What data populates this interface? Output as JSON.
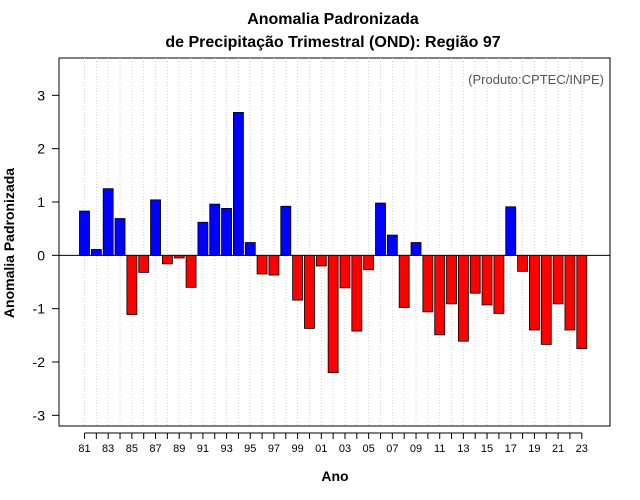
{
  "chart_data": {
    "type": "bar",
    "title_line1": "Anomalia Padronizada",
    "title_line2": "de Precipitação Trimestral (OND): Região 97",
    "xlabel": "Ano",
    "ylabel": "Anomalia Padronizada",
    "credit": "(Produto:CPTEC/INPE)",
    "ylim": [
      -3.2,
      3.7
    ],
    "yticks": [
      -3,
      -2,
      -1,
      0,
      1,
      2,
      3
    ],
    "ytick_labels": [
      "-3",
      "-2",
      "-1",
      "0",
      "1",
      "2",
      "3"
    ],
    "xtick_labels": [
      "81",
      "83",
      "85",
      "87",
      "89",
      "91",
      "93",
      "95",
      "97",
      "99",
      "01",
      "03",
      "05",
      "07",
      "09",
      "11",
      "13",
      "15",
      "17",
      "19",
      "21",
      "23"
    ],
    "categories": [
      "1981",
      "1982",
      "1983",
      "1984",
      "1985",
      "1986",
      "1987",
      "1988",
      "1989",
      "1990",
      "1991",
      "1992",
      "1993",
      "1994",
      "1995",
      "1996",
      "1997",
      "1998",
      "1999",
      "2000",
      "2001",
      "2002",
      "2003",
      "2004",
      "2005",
      "2006",
      "2007",
      "2008",
      "2009",
      "2010",
      "2011",
      "2012",
      "2013",
      "2014",
      "2015",
      "2016",
      "2017",
      "2018",
      "2019",
      "2020",
      "2021",
      "2022",
      "2023"
    ],
    "values": [
      0.83,
      0.11,
      1.25,
      0.69,
      -1.11,
      -0.32,
      1.04,
      -0.16,
      -0.05,
      -0.6,
      0.62,
      0.96,
      0.88,
      2.68,
      0.24,
      -0.35,
      -0.37,
      0.92,
      -0.84,
      -1.37,
      -0.2,
      -2.2,
      -0.61,
      -1.42,
      -0.27,
      0.98,
      0.38,
      -0.98,
      0.24,
      -1.06,
      -1.49,
      -0.91,
      -1.61,
      -0.71,
      -0.93,
      -1.09,
      0.91,
      -0.3,
      -1.4,
      -1.67,
      -0.91,
      -1.4,
      -1.75
    ],
    "positive_color": "#0000ff",
    "negative_color": "#ff0000",
    "grid": true
  }
}
